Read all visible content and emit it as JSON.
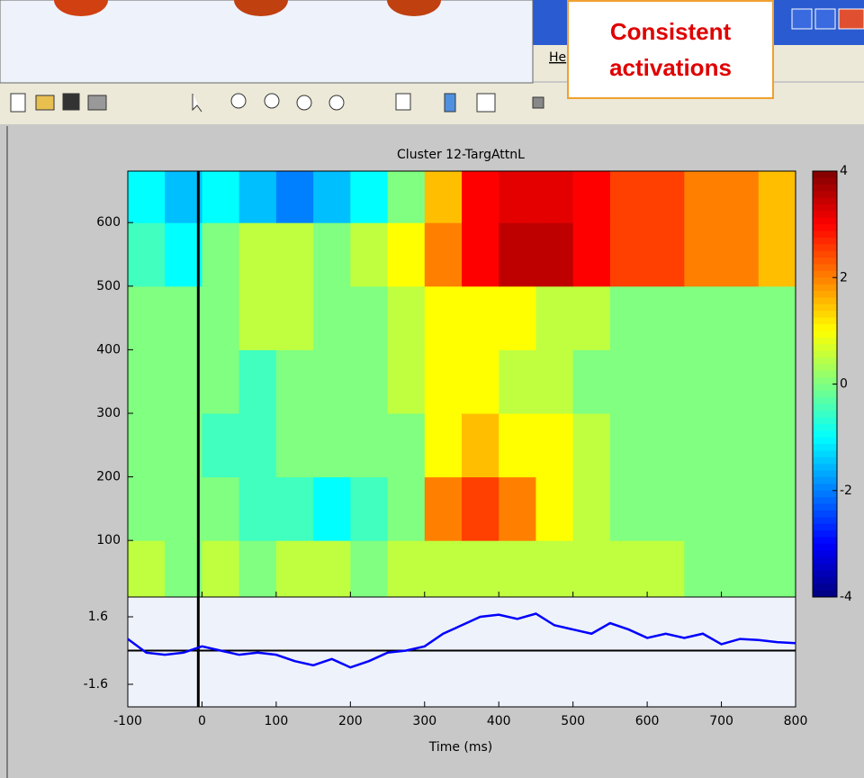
{
  "window": {
    "menu": "He",
    "callout": "Consistent activations"
  },
  "chart_data": [
    {
      "type": "heatmap",
      "title": "Cluster 12-TargAttnL",
      "x_edges": [
        -100,
        -50,
        0,
        50,
        100,
        150,
        200,
        250,
        300,
        350,
        400,
        450,
        500,
        550,
        600,
        650,
        700,
        750,
        800
      ],
      "y_edges": [
        11,
        100,
        200,
        300,
        400,
        500,
        600,
        681
      ],
      "z": [
        [
          0.5,
          0,
          0.5,
          0,
          0.5,
          0.5,
          0,
          0.5,
          0.5,
          0.5,
          0.5,
          0.5,
          0.5,
          0.5,
          0.5,
          0,
          0,
          0
        ],
        [
          0,
          0,
          0,
          -0.5,
          -0.5,
          -1,
          -0.5,
          0,
          2,
          2.5,
          2,
          1,
          0.5,
          0,
          0,
          0,
          0,
          0
        ],
        [
          0,
          0,
          -0.5,
          -0.5,
          0,
          0,
          0,
          0,
          1,
          1.5,
          1,
          1,
          0.5,
          0,
          0,
          0,
          0,
          0
        ],
        [
          0,
          0,
          0,
          -0.5,
          0,
          0,
          0,
          0.5,
          1,
          1,
          0.5,
          0.5,
          0,
          0,
          0,
          0,
          0,
          0
        ],
        [
          0,
          0,
          0,
          0.5,
          0.5,
          0,
          0,
          0.5,
          1,
          1,
          1,
          0.5,
          0.5,
          0,
          0,
          0,
          0,
          0
        ],
        [
          -0.5,
          -1,
          0,
          0.5,
          0.5,
          0,
          0.5,
          1,
          2,
          3,
          3.5,
          3.5,
          3,
          2.5,
          2.5,
          2,
          2,
          1.5
        ],
        [
          -1,
          -1.5,
          -1,
          -1.5,
          -2,
          -1.5,
          -1,
          0,
          1.5,
          3,
          3.2,
          3.2,
          3,
          2.5,
          2.5,
          2,
          2,
          1.5
        ]
      ],
      "colormap": "jet",
      "clim": [
        -4,
        4
      ],
      "cticks": [
        4,
        2,
        0,
        -2,
        -4
      ],
      "xlim": [
        -100,
        800
      ],
      "ylim": [
        11,
        681
      ],
      "yticks": [
        100,
        200,
        300,
        400,
        500,
        600
      ],
      "vline": -5
    },
    {
      "type": "line",
      "x": [
        -100,
        -75,
        -50,
        -25,
        0,
        25,
        50,
        75,
        100,
        125,
        150,
        175,
        200,
        225,
        250,
        275,
        300,
        325,
        350,
        375,
        400,
        425,
        450,
        475,
        500,
        525,
        550,
        575,
        600,
        625,
        650,
        675,
        700,
        725,
        750,
        775,
        800
      ],
      "series": [
        {
          "color": "#0000ff",
          "values": [
            0.55,
            -0.1,
            -0.2,
            -0.1,
            0.2,
            0,
            -0.2,
            -0.1,
            -0.2,
            -0.5,
            -0.7,
            -0.4,
            -0.8,
            -0.5,
            -0.1,
            0,
            0.2,
            0.8,
            1.2,
            1.6,
            1.7,
            1.5,
            1.75,
            1.2,
            1.0,
            0.8,
            1.3,
            1.0,
            0.6,
            0.8,
            0.6,
            0.8,
            0.3,
            0.55,
            0.5,
            0.4,
            0.35
          ]
        }
      ],
      "xlim": [
        -100,
        800
      ],
      "ylim": [
        -2.67,
        2.54
      ],
      "yticks": [
        1.6,
        -1.6
      ],
      "xticks": [
        -100,
        0,
        100,
        200,
        300,
        400,
        500,
        600,
        700,
        800
      ],
      "xlabel": "Time (ms)",
      "hline": 0,
      "vline": -5
    }
  ]
}
